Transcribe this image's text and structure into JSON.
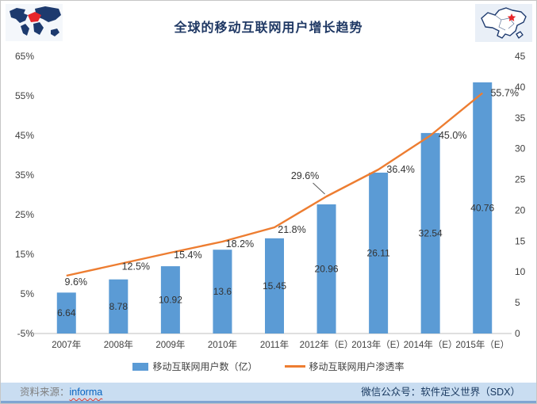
{
  "title": "全球的移动互联网用户增长趋势",
  "colors": {
    "bar": "#5b9bd5",
    "line": "#ed7d31",
    "title": "#1f3864",
    "axis_text": "#404040",
    "data_label": "#333333",
    "axis_line": "#bfbfbf",
    "footer_bg": "#c9ddf1",
    "source_link": "#0563c1",
    "map_navy": "#1d3a6e",
    "map_red": "#e8262a"
  },
  "chart_data": {
    "type": "bar",
    "categories": [
      "2007年",
      "2008年",
      "2009年",
      "2010年",
      "2011年",
      "2012年（E）",
      "2013年（E）",
      "2014年（E）",
      "2015年（E）"
    ],
    "series": [
      {
        "name": "移动互联网用户数（亿）",
        "type": "bar",
        "axis": "right",
        "values": [
          6.64,
          8.78,
          10.92,
          13.6,
          15.45,
          20.96,
          26.11,
          32.54,
          40.76
        ],
        "labels": [
          "6.64",
          "8.78",
          "10.92",
          "13.6",
          "15.45",
          "20.96",
          "26.11",
          "32.54",
          "40.76"
        ]
      },
      {
        "name": "移动互联网用户渗透率",
        "type": "line",
        "axis": "left",
        "values": [
          9.6,
          12.5,
          15.4,
          18.2,
          21.8,
          29.6,
          36.4,
          45.0,
          55.7
        ],
        "labels": [
          "9.6%",
          "12.5%",
          "15.4%",
          "18.2%",
          "21.8%",
          "29.6%",
          "36.4%",
          "45.0%",
          "55.7%"
        ]
      }
    ],
    "left_axis": {
      "ticks": [
        "65%",
        "55%",
        "45%",
        "35%",
        "25%",
        "15%",
        "5%",
        "-5%"
      ],
      "min": -5,
      "max": 65
    },
    "right_axis": {
      "ticks": [
        "45",
        "40",
        "35",
        "30",
        "25",
        "20",
        "15",
        "10",
        "5",
        "0"
      ],
      "min": 0,
      "max": 45
    },
    "legend_position": "bottom",
    "grid": false
  },
  "footer": {
    "source_label": "资料来源：",
    "source_link": "informa",
    "right_text": "微信公众号：软件定义世界（SDX）"
  }
}
